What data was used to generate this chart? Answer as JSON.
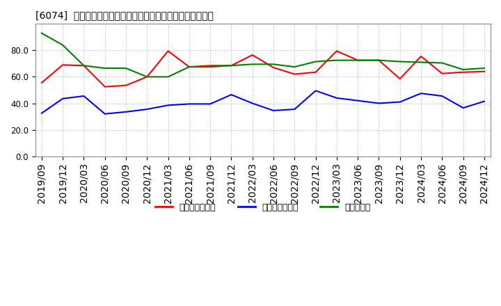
{
  "title": "[6074]  売上債権回転率、買入債務回転率、在庫回転率の推移",
  "x_labels": [
    "2019/09",
    "2019/12",
    "2020/03",
    "2020/06",
    "2020/09",
    "2020/12",
    "2021/03",
    "2021/06",
    "2021/09",
    "2021/12",
    "2022/03",
    "2022/06",
    "2022/09",
    "2022/12",
    "2023/03",
    "2023/06",
    "2023/09",
    "2023/12",
    "2024/03",
    "2024/06",
    "2024/09",
    "2024/12"
  ],
  "receivables_turnover": [
    55.5,
    69.0,
    68.5,
    52.5,
    53.5,
    60.0,
    79.5,
    67.5,
    68.5,
    68.5,
    76.5,
    67.0,
    62.0,
    63.5,
    79.5,
    72.5,
    72.5,
    58.5,
    75.5,
    62.5,
    63.5,
    64.0
  ],
  "payables_turnover": [
    32.5,
    43.5,
    45.5,
    32.0,
    33.5,
    35.5,
    38.5,
    39.5,
    39.5,
    46.5,
    40.0,
    34.5,
    35.5,
    49.5,
    44.0,
    42.0,
    40.0,
    41.0,
    47.5,
    45.5,
    36.5,
    41.5
  ],
  "inventory_turnover": [
    93.0,
    84.0,
    68.5,
    66.5,
    66.5,
    60.0,
    60.0,
    67.5,
    67.5,
    68.5,
    69.5,
    69.5,
    67.5,
    71.5,
    72.5,
    72.5,
    72.5,
    71.5,
    71.0,
    70.5,
    65.5,
    66.5
  ],
  "color_receivables": "#ff0000",
  "color_payables": "#0000ff",
  "color_inventory": "#008000",
  "ylim": [
    0,
    100
  ],
  "yticks": [
    0.0,
    20.0,
    40.0,
    60.0,
    80.0
  ],
  "legend_labels": [
    "売上債権回転率",
    "買入債務回転率",
    "在庫回転率"
  ],
  "bg_color": "#ffffff",
  "grid_color": "#b0b0b0"
}
